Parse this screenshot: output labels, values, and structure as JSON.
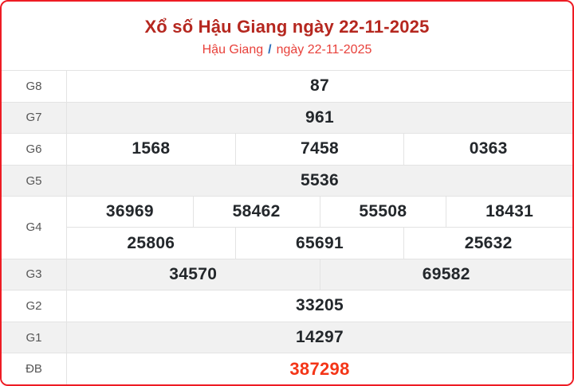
{
  "header": {
    "title": "Xổ số Hậu Giang ngày 22-11-2025",
    "region": "Hậu Giang",
    "separator": "/",
    "date": "ngày 22-11-2025"
  },
  "colors": {
    "outer_border": "#ee1c24",
    "title": "#b5271f",
    "links": "#e8403a",
    "separator": "#2a6ebb",
    "special_prize": "#f43517",
    "shaded_row": "#f1f1f1",
    "cell_divider": "#e3e3e3",
    "number_text": "#23272b",
    "label_text": "#565656"
  },
  "table": {
    "rows": [
      {
        "label": "G8",
        "shaded": false,
        "special": false,
        "groups": [
          [
            "87"
          ]
        ]
      },
      {
        "label": "G7",
        "shaded": true,
        "special": false,
        "groups": [
          [
            "961"
          ]
        ]
      },
      {
        "label": "G6",
        "shaded": false,
        "special": false,
        "groups": [
          [
            "1568",
            "7458",
            "0363"
          ]
        ]
      },
      {
        "label": "G5",
        "shaded": true,
        "special": false,
        "groups": [
          [
            "5536"
          ]
        ]
      },
      {
        "label": "G4",
        "shaded": false,
        "special": false,
        "groups": [
          [
            "36969",
            "58462",
            "55508",
            "18431"
          ],
          [
            "25806",
            "65691",
            "25632"
          ]
        ]
      },
      {
        "label": "G3",
        "shaded": true,
        "special": false,
        "groups": [
          [
            "34570",
            "69582"
          ]
        ]
      },
      {
        "label": "G2",
        "shaded": false,
        "special": false,
        "groups": [
          [
            "33205"
          ]
        ]
      },
      {
        "label": "G1",
        "shaded": true,
        "special": false,
        "groups": [
          [
            "14297"
          ]
        ]
      },
      {
        "label": "ĐB",
        "shaded": false,
        "special": true,
        "groups": [
          [
            "387298"
          ]
        ]
      }
    ]
  }
}
